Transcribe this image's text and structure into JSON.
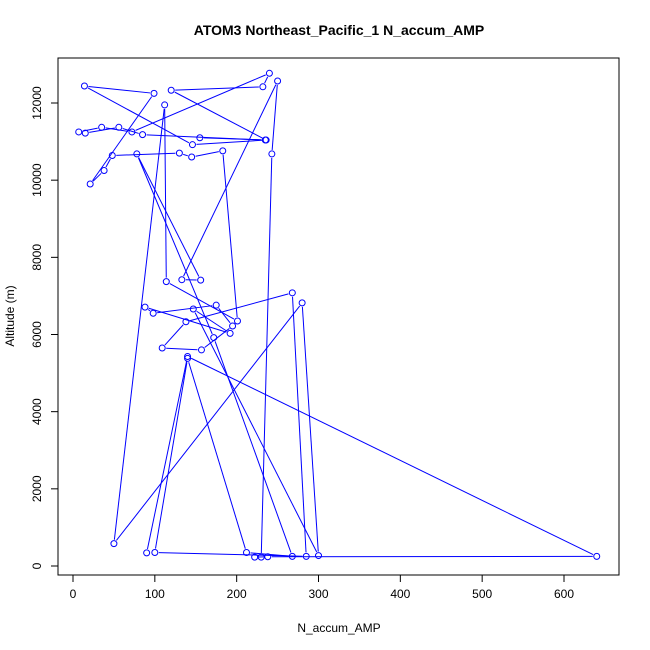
{
  "chart_data": {
    "type": "line",
    "title": "ATOM3 Northeast_Pacific_1 N_accum_AMP",
    "xlabel": "N_accum_AMP",
    "ylabel": "Altitude (m)",
    "xlim": [
      0,
      650
    ],
    "ylim": [
      0,
      13000
    ],
    "xticks": [
      0,
      100,
      200,
      300,
      400,
      500,
      600
    ],
    "yticks": [
      0,
      2000,
      4000,
      6000,
      8000,
      10000,
      12000
    ],
    "grid": false,
    "series": [
      {
        "line_color": "#0000ff",
        "marker": "open-circle",
        "x": [
          155,
          235,
          85,
          56,
          15,
          7,
          35,
          72,
          240,
          232,
          120,
          236,
          146,
          14,
          99,
          21,
          38,
          48,
          130,
          145,
          183,
          201,
          114,
          112,
          50,
          280,
          300,
          147,
          192,
          88,
          98,
          175,
          195,
          157,
          109,
          138,
          268,
          285,
          100,
          140,
          212,
          268,
          172,
          78,
          156,
          133,
          250,
          243,
          230,
          222,
          238,
          640,
          140,
          90
        ],
        "y": [
          11100,
          11040,
          11180,
          11370,
          11220,
          11250,
          11370,
          11250,
          12770,
          12420,
          12330,
          11040,
          10920,
          12440,
          12250,
          9900,
          10250,
          10640,
          10700,
          10600,
          10760,
          6350,
          7370,
          11950,
          580,
          6820,
          270,
          6660,
          6030,
          6710,
          6550,
          6760,
          6220,
          5600,
          5650,
          6330,
          7080,
          250,
          350,
          5380,
          350,
          250,
          5920,
          10680,
          7410,
          7420,
          12570,
          10680,
          230,
          230,
          240,
          250,
          5430,
          340
        ]
      }
    ]
  }
}
